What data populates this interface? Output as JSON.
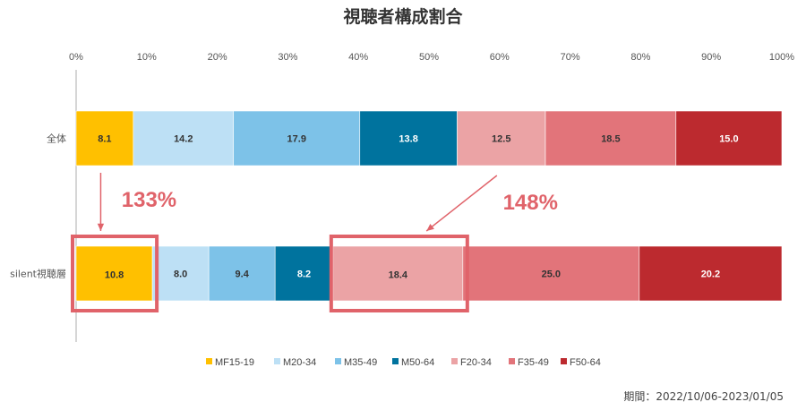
{
  "chart_data": {
    "type": "bar",
    "orientation": "horizontal",
    "stacked": "percent",
    "title": "視聴者構成割合",
    "categories": [
      "全体",
      "silent視聴層"
    ],
    "xlim": [
      0,
      100
    ],
    "x_ticks": [
      "0%",
      "10%",
      "20%",
      "30%",
      "40%",
      "50%",
      "60%",
      "70%",
      "80%",
      "90%",
      "100%"
    ],
    "series": [
      {
        "name": "MF15-19",
        "color": "#FFC000",
        "values": [
          8.1,
          10.8
        ]
      },
      {
        "name": "M20-34",
        "color": "#BDE0F5",
        "values": [
          14.2,
          8.0
        ]
      },
      {
        "name": "M35-49",
        "color": "#7DC2E8",
        "values": [
          17.9,
          9.4
        ]
      },
      {
        "name": "M50-64",
        "color": "#00739E",
        "values": [
          13.8,
          8.2
        ]
      },
      {
        "name": "F20-34",
        "color": "#EBA3A5",
        "values": [
          12.5,
          18.4
        ]
      },
      {
        "name": "F35-49",
        "color": "#E2747A",
        "values": [
          18.5,
          25.0
        ]
      },
      {
        "name": "F50-64",
        "color": "#BC2A2F",
        "values": [
          15.0,
          20.2
        ]
      }
    ],
    "legend_position": "bottom",
    "grid": false,
    "annotations": [
      {
        "text": "133%",
        "series": "MF15-19",
        "from": "全体",
        "to": "silent視聴層"
      },
      {
        "text": "148%",
        "series": "F20-34",
        "from": "全体",
        "to": "silent視聴層"
      }
    ],
    "highlight_color": "#E0636A",
    "footnote": "期間：2022/10/06-2023/01/05"
  }
}
